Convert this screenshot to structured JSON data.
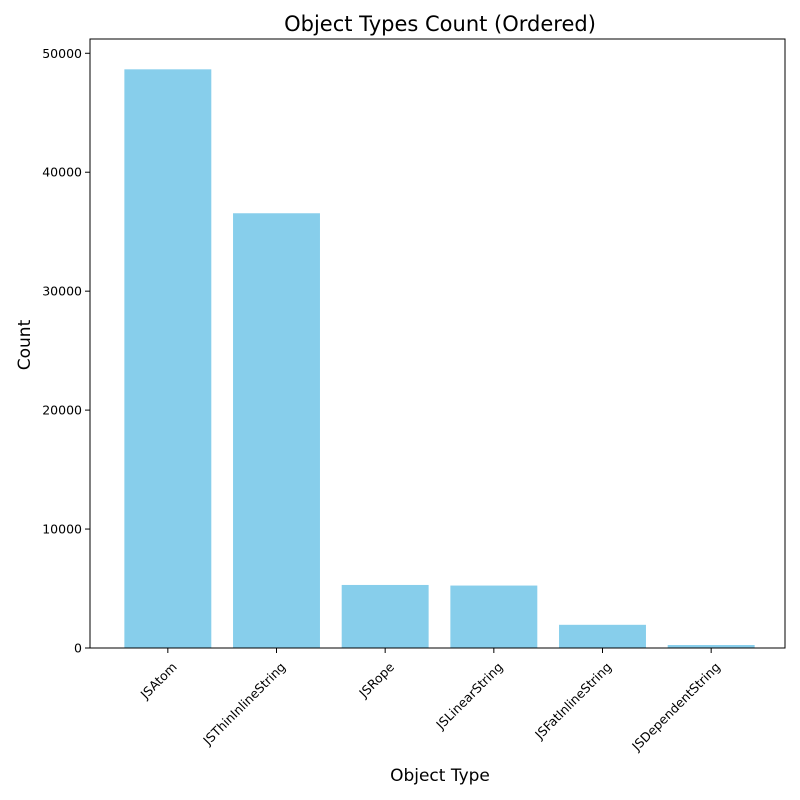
{
  "chart_data": {
    "type": "bar",
    "title": "Object Types Count (Ordered)",
    "xlabel": "Object Type",
    "ylabel": "Count",
    "categories": [
      "JSAtom",
      "JSThinInlineString",
      "JSRope",
      "JSLinearString",
      "JSFatInlineString",
      "JSDependentString"
    ],
    "values": [
      48650,
      36550,
      5300,
      5250,
      1950,
      250
    ],
    "ylim": [
      0,
      51200
    ],
    "yticks": [
      0,
      10000,
      20000,
      30000,
      40000,
      50000
    ],
    "bar_color": "#87ceeb",
    "grid": false
  }
}
